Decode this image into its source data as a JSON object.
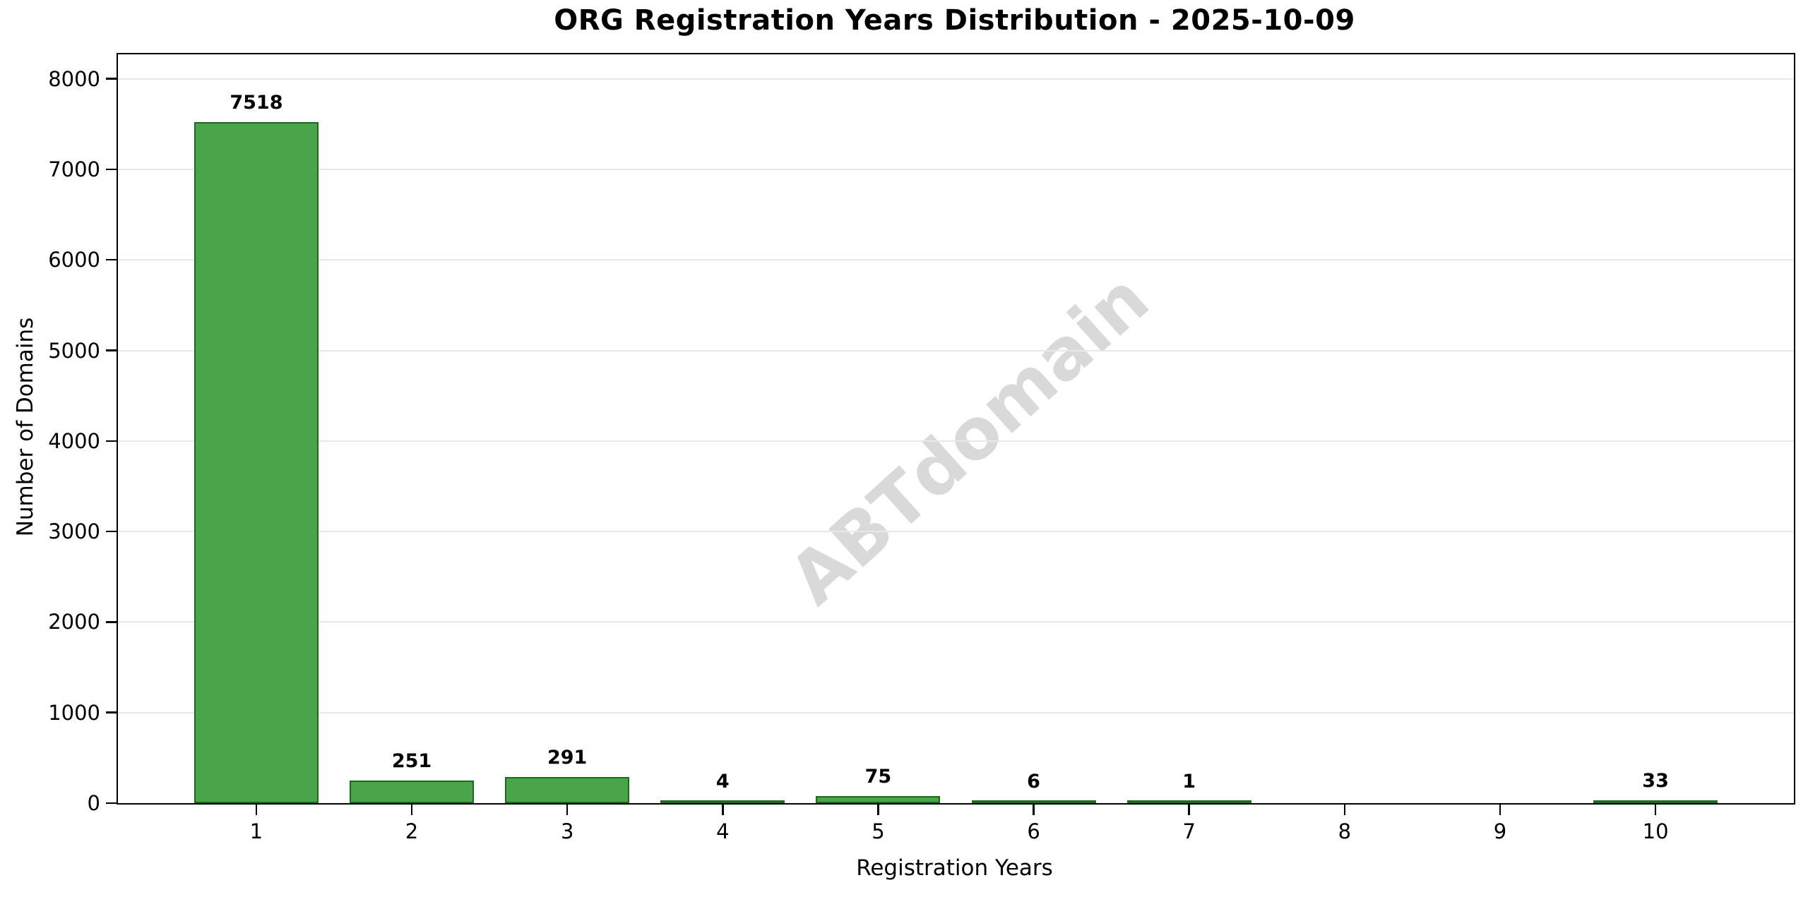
{
  "watermark_text": "ABTdomain",
  "colors": {
    "bar_fill": "#4aa54a",
    "bar_edge": "#1c6b1c",
    "gridline": "#e8e8e8",
    "axis": "#000000",
    "watermark": "#d9d9d9",
    "background": "#ffffff"
  },
  "chart_data": {
    "type": "bar",
    "title": "ORG Registration Years Distribution - 2025-10-09",
    "xlabel": "Registration Years",
    "ylabel": "Number of Domains",
    "categories": [
      "1",
      "2",
      "3",
      "4",
      "5",
      "6",
      "7",
      "8",
      "9",
      "10"
    ],
    "values": [
      7518,
      251,
      291,
      4,
      75,
      6,
      1,
      0,
      0,
      33
    ],
    "bar_labels": [
      "7518",
      "251",
      "291",
      "4",
      "75",
      "6",
      "1",
      "",
      "",
      "33"
    ],
    "yticks": [
      0,
      1000,
      2000,
      3000,
      4000,
      5000,
      6000,
      7000,
      8000
    ],
    "ylim": [
      0,
      8270
    ],
    "grid": "horizontal",
    "legend": "none",
    "bar_width_fraction": 0.8,
    "x_edge_padding": 0.89
  }
}
